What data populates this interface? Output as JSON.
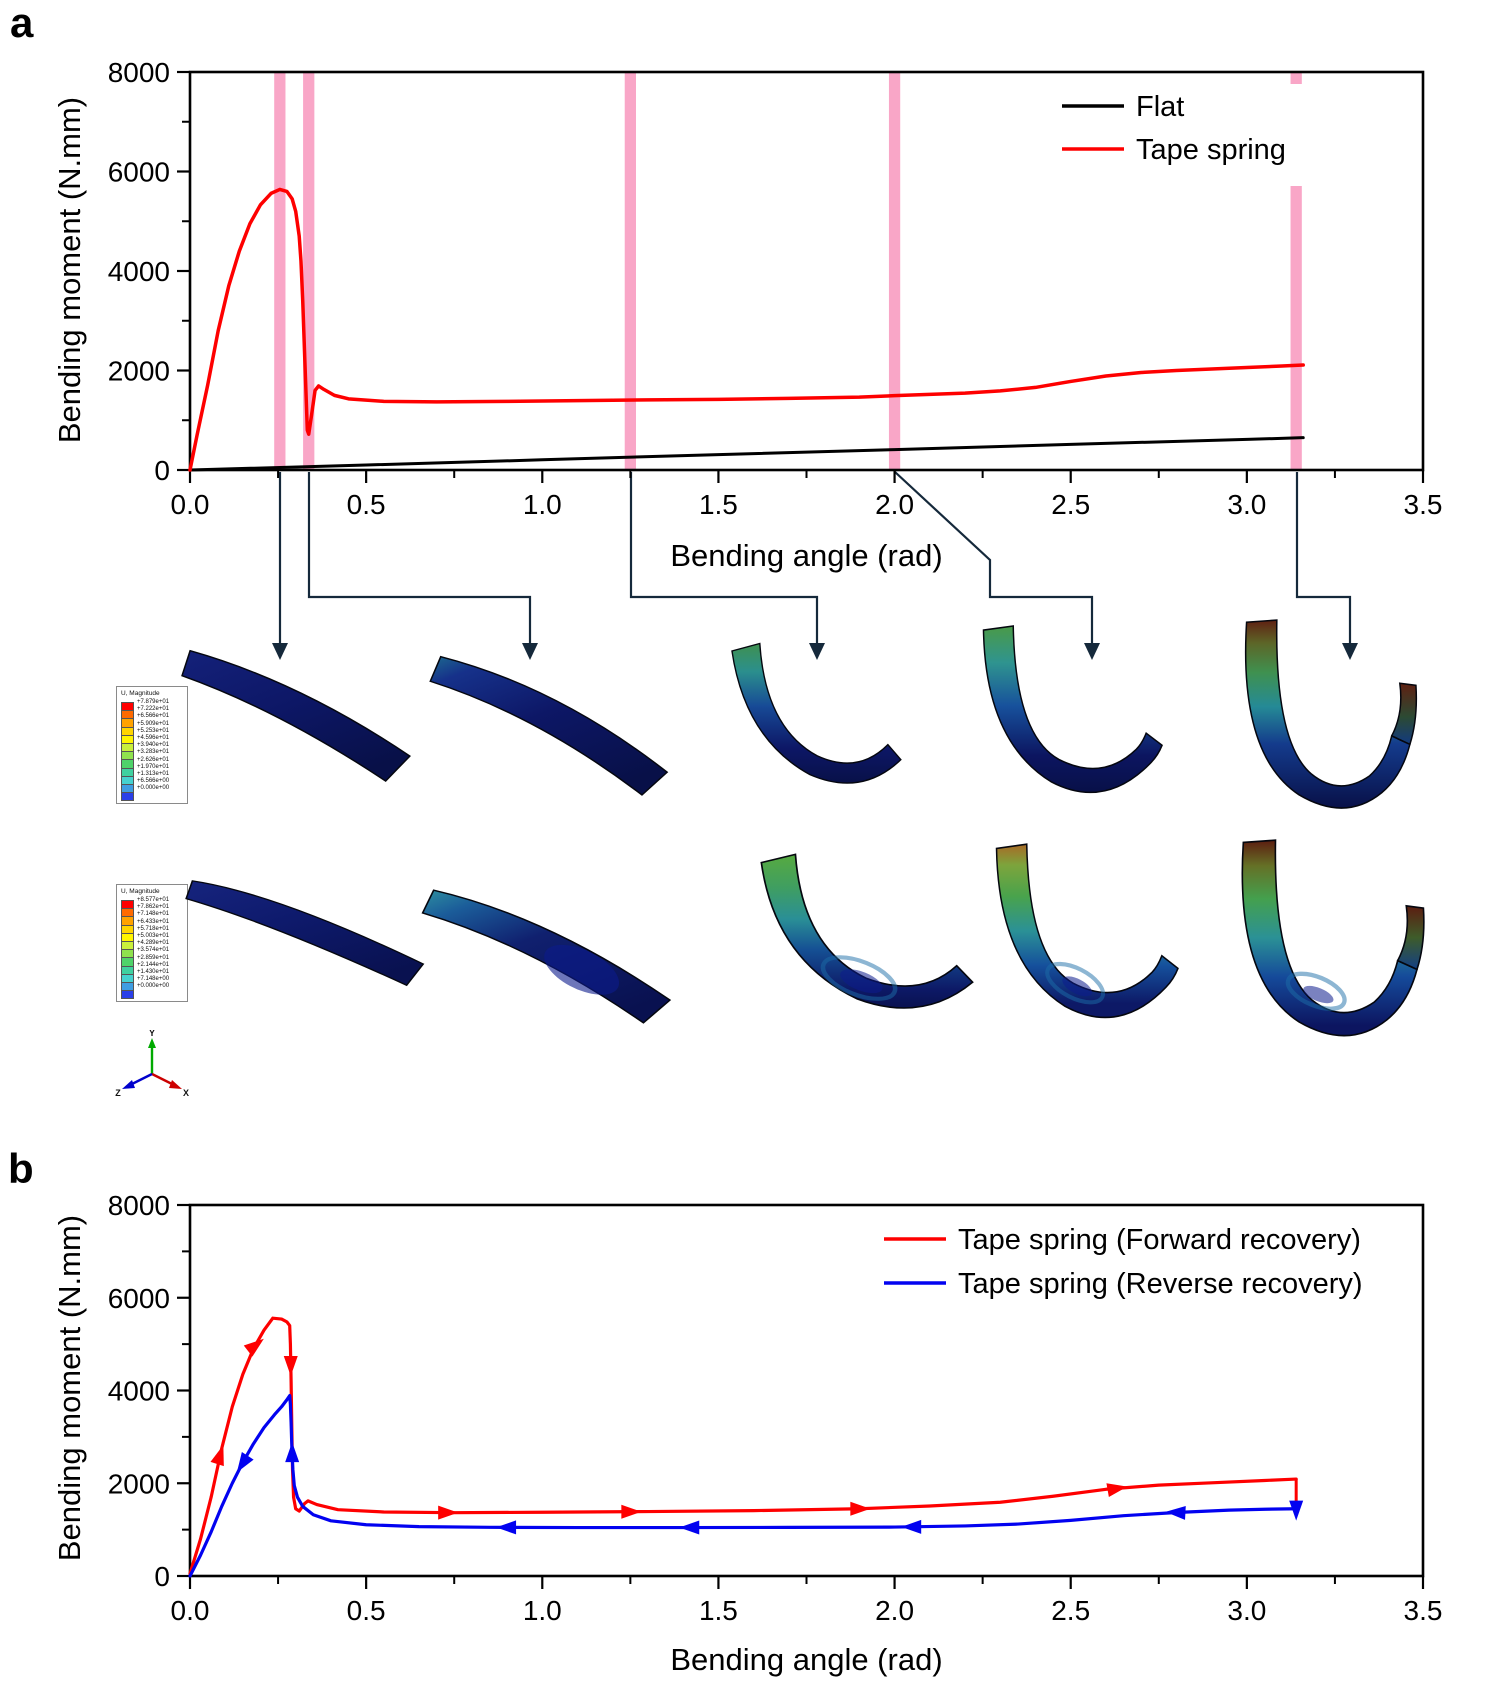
{
  "panels": {
    "a": {
      "label": "a"
    },
    "b": {
      "label": "b"
    }
  },
  "chart_data": [
    {
      "type": "line",
      "panel": "a",
      "xlabel": "Bending angle (rad)",
      "ylabel": "Bending moment (N.mm)",
      "xlim": [
        0,
        3.5
      ],
      "ylim": [
        0,
        8000
      ],
      "xticks": [
        0,
        0.5,
        1.0,
        1.5,
        2.0,
        2.5,
        3.0,
        3.5
      ],
      "xtick_labels": [
        "0.0",
        "0.5",
        "1.0",
        "1.5",
        "2.0",
        "2.5",
        "3.0",
        "3.5"
      ],
      "yticks": [
        0,
        2000,
        4000,
        6000,
        8000
      ],
      "ytick_labels": [
        "0",
        "2000",
        "4000",
        "6000",
        "8000"
      ],
      "x_minor_step": 0.25,
      "y_minor_step": 1000,
      "grid": false,
      "legend_position": "top-right",
      "highlight_bars": {
        "color": "#f9a6c7",
        "width_rad": 0.032,
        "x": [
          0.255,
          0.337,
          1.25,
          2.0,
          3.14
        ]
      },
      "series": [
        {
          "name": "Flat",
          "color": "#000000",
          "width": 3,
          "points": [
            [
              0,
              0
            ],
            [
              0.5,
              100
            ],
            [
              1.0,
              205
            ],
            [
              1.5,
              310
            ],
            [
              2.0,
              410
            ],
            [
              2.5,
              515
            ],
            [
              3.0,
              615
            ],
            [
              3.16,
              650
            ]
          ]
        },
        {
          "name": "Tape spring",
          "color": "#fe0000",
          "width": 3.5,
          "points": [
            [
              0,
              0
            ],
            [
              0.02,
              700
            ],
            [
              0.05,
              1700
            ],
            [
              0.08,
              2800
            ],
            [
              0.11,
              3700
            ],
            [
              0.14,
              4400
            ],
            [
              0.17,
              4950
            ],
            [
              0.2,
              5330
            ],
            [
              0.23,
              5560
            ],
            [
              0.255,
              5640
            ],
            [
              0.275,
              5600
            ],
            [
              0.29,
              5450
            ],
            [
              0.3,
              5200
            ],
            [
              0.31,
              4700
            ],
            [
              0.315,
              4200
            ],
            [
              0.32,
              3400
            ],
            [
              0.325,
              2400
            ],
            [
              0.33,
              1400
            ],
            [
              0.333,
              800
            ],
            [
              0.337,
              720
            ],
            [
              0.345,
              1100
            ],
            [
              0.355,
              1600
            ],
            [
              0.365,
              1690
            ],
            [
              0.38,
              1620
            ],
            [
              0.41,
              1500
            ],
            [
              0.45,
              1430
            ],
            [
              0.55,
              1380
            ],
            [
              0.7,
              1370
            ],
            [
              0.9,
              1380
            ],
            [
              1.1,
              1395
            ],
            [
              1.3,
              1410
            ],
            [
              1.5,
              1420
            ],
            [
              1.7,
              1440
            ],
            [
              1.9,
              1465
            ],
            [
              2.0,
              1495
            ],
            [
              2.1,
              1520
            ],
            [
              2.2,
              1545
            ],
            [
              2.3,
              1590
            ],
            [
              2.4,
              1660
            ],
            [
              2.5,
              1780
            ],
            [
              2.6,
              1890
            ],
            [
              2.7,
              1960
            ],
            [
              2.8,
              2000
            ],
            [
              2.9,
              2030
            ],
            [
              3.0,
              2060
            ],
            [
              3.1,
              2090
            ],
            [
              3.16,
              2110
            ]
          ]
        }
      ]
    },
    {
      "type": "line",
      "panel": "b",
      "xlabel": "Bending angle (rad)",
      "ylabel": "Bending moment (N.mm)",
      "xlim": [
        0,
        3.5
      ],
      "ylim": [
        0,
        8000
      ],
      "xticks": [
        0,
        0.5,
        1.0,
        1.5,
        2.0,
        2.5,
        3.0,
        3.5
      ],
      "xtick_labels": [
        "0.0",
        "0.5",
        "1.0",
        "1.5",
        "2.0",
        "2.5",
        "3.0",
        "3.5"
      ],
      "yticks": [
        0,
        2000,
        4000,
        6000,
        8000
      ],
      "ytick_labels": [
        "0",
        "2000",
        "4000",
        "6000",
        "8000"
      ],
      "x_minor_step": 0.25,
      "y_minor_step": 1000,
      "grid": false,
      "legend_position": "top-right",
      "series": [
        {
          "name": "Tape spring (Forward recovery)",
          "color": "#fe0000",
          "width": 3.2,
          "points": [
            [
              0,
              50
            ],
            [
              0.03,
              800
            ],
            [
              0.06,
              1700
            ],
            [
              0.09,
              2750
            ],
            [
              0.12,
              3650
            ],
            [
              0.15,
              4350
            ],
            [
              0.18,
              4900
            ],
            [
              0.21,
              5300
            ],
            [
              0.235,
              5560
            ],
            [
              0.26,
              5540
            ],
            [
              0.275,
              5480
            ],
            [
              0.283,
              5400
            ],
            [
              0.285,
              5000
            ],
            [
              0.287,
              4200
            ],
            [
              0.289,
              3200
            ],
            [
              0.291,
              2300
            ],
            [
              0.294,
              1700
            ],
            [
              0.3,
              1450
            ],
            [
              0.31,
              1400
            ],
            [
              0.325,
              1560
            ],
            [
              0.335,
              1620
            ],
            [
              0.36,
              1540
            ],
            [
              0.42,
              1430
            ],
            [
              0.55,
              1380
            ],
            [
              0.75,
              1365
            ],
            [
              1.0,
              1375
            ],
            [
              1.3,
              1390
            ],
            [
              1.6,
              1410
            ],
            [
              1.9,
              1450
            ],
            [
              2.1,
              1510
            ],
            [
              2.3,
              1590
            ],
            [
              2.45,
              1720
            ],
            [
              2.6,
              1870
            ],
            [
              2.75,
              1960
            ],
            [
              2.9,
              2010
            ],
            [
              3.05,
              2060
            ],
            [
              3.14,
              2090
            ]
          ],
          "arrows": [
            {
              "x": 0.085,
              "y": 2600,
              "angle": -72
            },
            {
              "x": 0.185,
              "y": 4970,
              "angle": -38
            },
            {
              "x": 0.286,
              "y": 4550,
              "angle": 90
            },
            {
              "x": 0.73,
              "y": 1366,
              "angle": 0
            },
            {
              "x": 1.25,
              "y": 1386,
              "angle": 0
            },
            {
              "x": 1.9,
              "y": 1450,
              "angle": 0
            },
            {
              "x": 2.63,
              "y": 1885,
              "angle": -10
            }
          ]
        },
        {
          "name": "Tape spring (Reverse recovery)",
          "color": "#0202f0",
          "width": 3.2,
          "points": [
            [
              0,
              0
            ],
            [
              0.03,
              450
            ],
            [
              0.06,
              950
            ],
            [
              0.09,
              1500
            ],
            [
              0.12,
              2000
            ],
            [
              0.15,
              2450
            ],
            [
              0.18,
              2850
            ],
            [
              0.21,
              3200
            ],
            [
              0.24,
              3480
            ],
            [
              0.26,
              3650
            ],
            [
              0.275,
              3800
            ],
            [
              0.283,
              3890
            ],
            [
              0.285,
              3700
            ],
            [
              0.287,
              3300
            ],
            [
              0.289,
              2800
            ],
            [
              0.292,
              2300
            ],
            [
              0.296,
              1950
            ],
            [
              0.305,
              1700
            ],
            [
              0.32,
              1500
            ],
            [
              0.35,
              1320
            ],
            [
              0.4,
              1190
            ],
            [
              0.5,
              1105
            ],
            [
              0.65,
              1065
            ],
            [
              0.85,
              1050
            ],
            [
              1.1,
              1045
            ],
            [
              1.4,
              1045
            ],
            [
              1.7,
              1048
            ],
            [
              2.0,
              1055
            ],
            [
              2.2,
              1080
            ],
            [
              2.35,
              1120
            ],
            [
              2.5,
              1200
            ],
            [
              2.65,
              1300
            ],
            [
              2.8,
              1370
            ],
            [
              2.95,
              1420
            ],
            [
              3.05,
              1440
            ],
            [
              3.14,
              1450
            ]
          ],
          "arrows": [
            {
              "x": 0.15,
              "y": 2430,
              "angle": 123
            },
            {
              "x": 0.29,
              "y": 2650,
              "angle": -90
            },
            {
              "x": 0.9,
              "y": 1048,
              "angle": 180
            },
            {
              "x": 1.42,
              "y": 1045,
              "angle": 180
            },
            {
              "x": 2.05,
              "y": 1058,
              "angle": 180
            },
            {
              "x": 2.8,
              "y": 1370,
              "angle": 183
            }
          ]
        }
      ],
      "transition_connector": {
        "x": 3.14,
        "from_y": 2090,
        "to_y": 1560,
        "line_color": "#fe0000",
        "head_color": "#0202f0"
      }
    }
  ],
  "fea": {
    "scale_colors": [
      "#ff0000",
      "#ff6a00",
      "#ffa200",
      "#ffd500",
      "#fff500",
      "#c9f03c",
      "#8fe24e",
      "#4fd36a",
      "#3fd1a0",
      "#45d2cf",
      "#3f9de2",
      "#2a3fe8"
    ],
    "rows": [
      {
        "legend": {
          "title": "U, Magnitude",
          "values": [
            "+7.879e+01",
            "+7.222e+01",
            "+6.566e+01",
            "+5.909e+01",
            "+5.253e+01",
            "+4.596e+01",
            "+3.940e+01",
            "+3.283e+01",
            "+2.626e+01",
            "+1.970e+01",
            "+1.313e+01",
            "+6.566e+00",
            "+0.000e+00"
          ]
        }
      },
      {
        "legend": {
          "title": "U, Magnitude",
          "values": [
            "+8.577e+01",
            "+7.862e+01",
            "+7.148e+01",
            "+6.433e+01",
            "+5.718e+01",
            "+5.003e+01",
            "+4.289e+01",
            "+3.574e+01",
            "+2.859e+01",
            "+2.144e+01",
            "+1.430e+01",
            "+7.148e+00",
            "+0.000e+00"
          ]
        }
      }
    ],
    "triad": {
      "x_label": "X",
      "y_label": "Y",
      "z_label": "Z",
      "x_color": "#cc0000",
      "y_color": "#00aa00",
      "z_color": "#0000cc"
    }
  }
}
